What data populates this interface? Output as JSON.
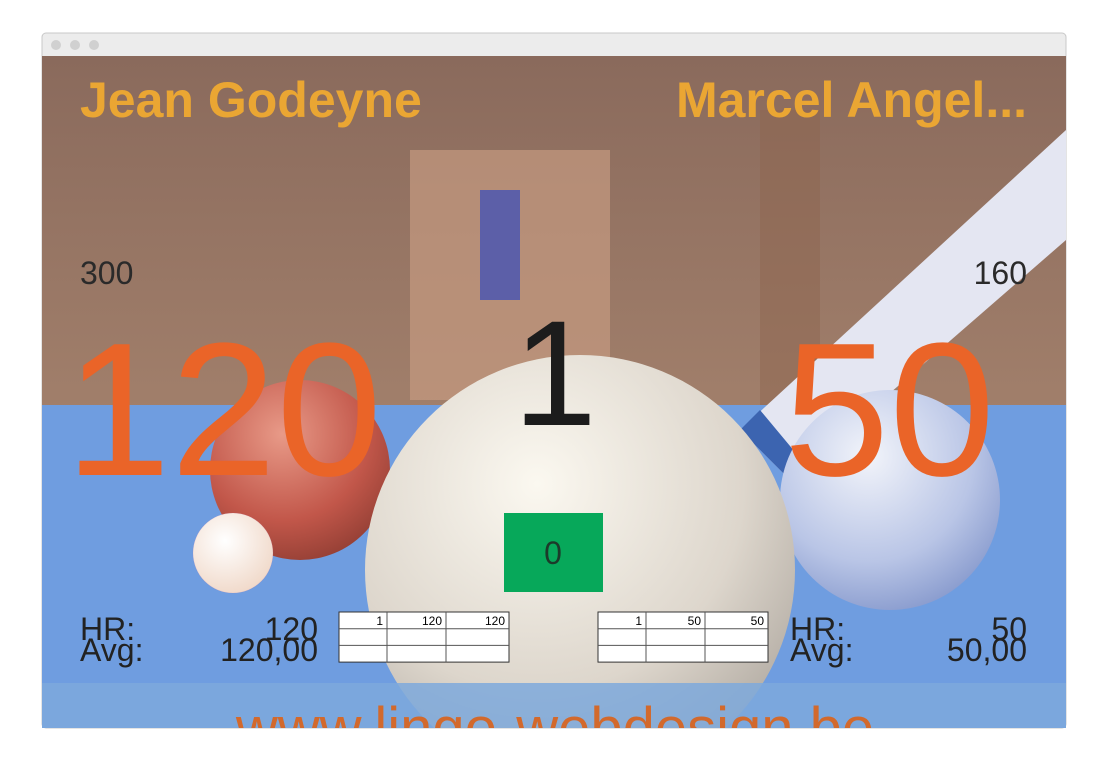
{
  "players": [
    {
      "name": "Jean Godeyne",
      "target": "300",
      "score": "120",
      "hr_label": "HR:",
      "hr": "120",
      "avg_label": "Avg:",
      "avg": "120,00",
      "table": {
        "rows": [
          [
            "1",
            "120",
            "120"
          ]
        ]
      }
    },
    {
      "name": "Marcel Angel...",
      "target": "160",
      "score": "50",
      "hr_label": "HR:",
      "hr": "50",
      "avg_label": "Avg:",
      "avg": "50,00",
      "table": {
        "rows": [
          [
            "1",
            "50",
            "50"
          ]
        ]
      }
    }
  ],
  "inning": "1",
  "current_run": "0",
  "footer": "www.lingo-webdesign.be"
}
